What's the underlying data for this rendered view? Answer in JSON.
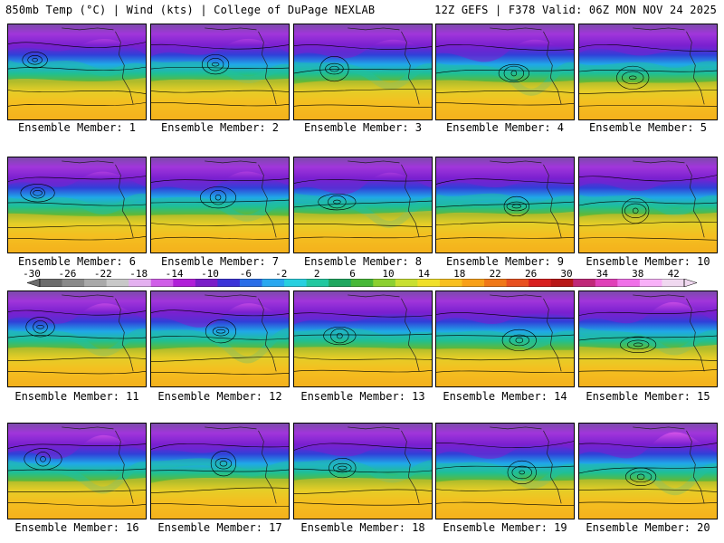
{
  "header": {
    "left": "850mb Temp (°C) | Wind (kts) | College of DuPage NEXLAB",
    "right": "12Z GEFS | F378 Valid: 06Z MON NOV 24 2025"
  },
  "colorbar": {
    "labels": [
      "-30",
      "-26",
      "-22",
      "-18",
      "-14",
      "-10",
      "-6",
      "-2",
      "2",
      "6",
      "10",
      "14",
      "18",
      "22",
      "26",
      "30",
      "34",
      "38",
      "42"
    ],
    "colors": [
      "#6d6d6d",
      "#8a8a8a",
      "#a9a9a9",
      "#c8c8c8",
      "#e4b0f0",
      "#d05ee8",
      "#b020d8",
      "#7a1ec8",
      "#3c34d8",
      "#2a6ee8",
      "#2aa8f0",
      "#28d0e0",
      "#22c8a0",
      "#20a860",
      "#48b838",
      "#8cd030",
      "#c8e030",
      "#f0e028",
      "#f8c020",
      "#f8a018",
      "#f07818",
      "#e85020",
      "#d82020",
      "#b81818",
      "#c02878",
      "#e040b8",
      "#f070e8",
      "#f8b0f8",
      "#f0d8f0"
    ]
  },
  "panels": [
    {
      "label": "Ensemble Member: 1",
      "variant": 0
    },
    {
      "label": "Ensemble Member: 2",
      "variant": 1
    },
    {
      "label": "Ensemble Member: 3",
      "variant": 2
    },
    {
      "label": "Ensemble Member: 4",
      "variant": 3
    },
    {
      "label": "Ensemble Member: 5",
      "variant": 4
    },
    {
      "label": "Ensemble Member: 6",
      "variant": 5
    },
    {
      "label": "Ensemble Member: 7",
      "variant": 6
    },
    {
      "label": "Ensemble Member: 8",
      "variant": 7
    },
    {
      "label": "Ensemble Member: 9",
      "variant": 8
    },
    {
      "label": "Ensemble Member: 10",
      "variant": 9
    },
    {
      "label": "Ensemble Member: 11",
      "variant": 10
    },
    {
      "label": "Ensemble Member: 12",
      "variant": 11
    },
    {
      "label": "Ensemble Member: 13",
      "variant": 12
    },
    {
      "label": "Ensemble Member: 14",
      "variant": 13
    },
    {
      "label": "Ensemble Member: 15",
      "variant": 14
    },
    {
      "label": "Ensemble Member: 16",
      "variant": 15
    },
    {
      "label": "Ensemble Member: 17",
      "variant": 16
    },
    {
      "label": "Ensemble Member: 18",
      "variant": 17
    },
    {
      "label": "Ensemble Member: 19",
      "variant": 18
    },
    {
      "label": "Ensemble Member: 20",
      "variant": 19
    }
  ]
}
